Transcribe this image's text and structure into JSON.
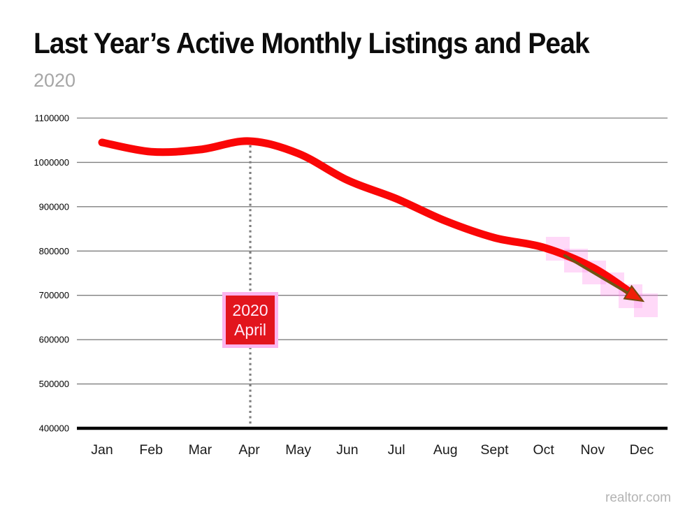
{
  "page": {
    "title": "Last Year’s Active Monthly Listings and Peak",
    "subtitle": "2020",
    "source": "realtor.com"
  },
  "annotation": {
    "line1": "2020",
    "line2": "April"
  },
  "colors": {
    "line": "#fa0606",
    "grid": "#7f7f7f",
    "axis": "#000000",
    "dotted_line": "#7d7d7d",
    "annotation_box_fill": "#e2151d",
    "annotation_box_border": "#fbb4ee",
    "annotation_text": "#ffeaf8",
    "arrow_stripe": "#6e5513",
    "arrow_head_fill": "#f01f08",
    "arrow_head_stroke": "#744c10",
    "halo": "#ff8ae8",
    "tick_text": "#000000",
    "month_text": "#1a1a1a",
    "subtitle_text": "#a6a6a6",
    "source_text": "#b3b3b3"
  },
  "chart_data": {
    "type": "line",
    "title": "Last Year’s Active Monthly Listings and Peak",
    "subtitle": "2020",
    "categories": [
      "Jan",
      "Feb",
      "Mar",
      "Apr",
      "May",
      "Jun",
      "Jul",
      "Aug",
      "Sept",
      "Oct",
      "Nov",
      "Dec"
    ],
    "series": [
      {
        "name": "Active Monthly Listings",
        "values": [
          1045000,
          1024000,
          1029000,
          1048000,
          1020000,
          960000,
          918000,
          868000,
          830000,
          808000,
          763000,
          690000
        ]
      }
    ],
    "y_ticks": [
      1100000,
      1000000,
      900000,
      800000,
      700000,
      600000,
      500000,
      400000
    ],
    "ylim": [
      400000,
      1100000
    ],
    "xlabel": "",
    "ylabel": "",
    "grid": true,
    "legend": false,
    "peak": {
      "category": "Apr",
      "value": 1048000,
      "label": [
        "2020",
        "April"
      ]
    },
    "annotations": [
      "dotted vertical reference line at April peak",
      "downward arrow head at December end of line",
      "pink highlighter patches along November-December segment"
    ],
    "source": "realtor.com"
  }
}
